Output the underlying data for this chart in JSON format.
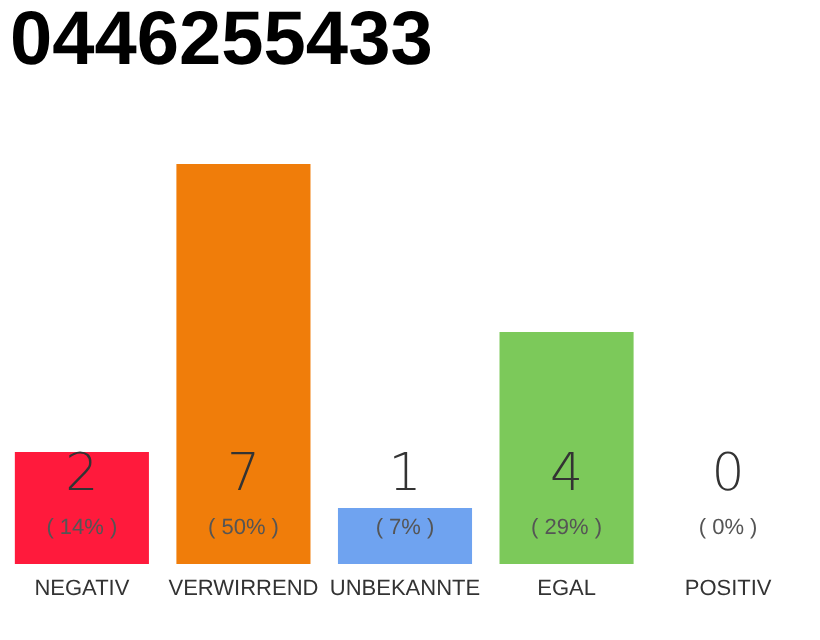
{
  "chart_data": {
    "type": "bar",
    "title": "0446255433",
    "categories": [
      "NEGATIV",
      "VERWIRREND",
      "UNBEKANNTE",
      "EGAL",
      "POSITIV"
    ],
    "values": [
      14,
      50,
      7,
      29,
      0
    ],
    "colors": [
      "#ff1a3c",
      "#f07d0a",
      "#6fa3f0",
      "#7cc95a",
      "#dddddd"
    ],
    "value_labels": [
      "( 14% )",
      "( 50% )",
      "( 7% )",
      "( 29% )",
      "( 0% )"
    ],
    "annotations": [
      "2",
      "7",
      "1",
      "4",
      "0"
    ]
  }
}
